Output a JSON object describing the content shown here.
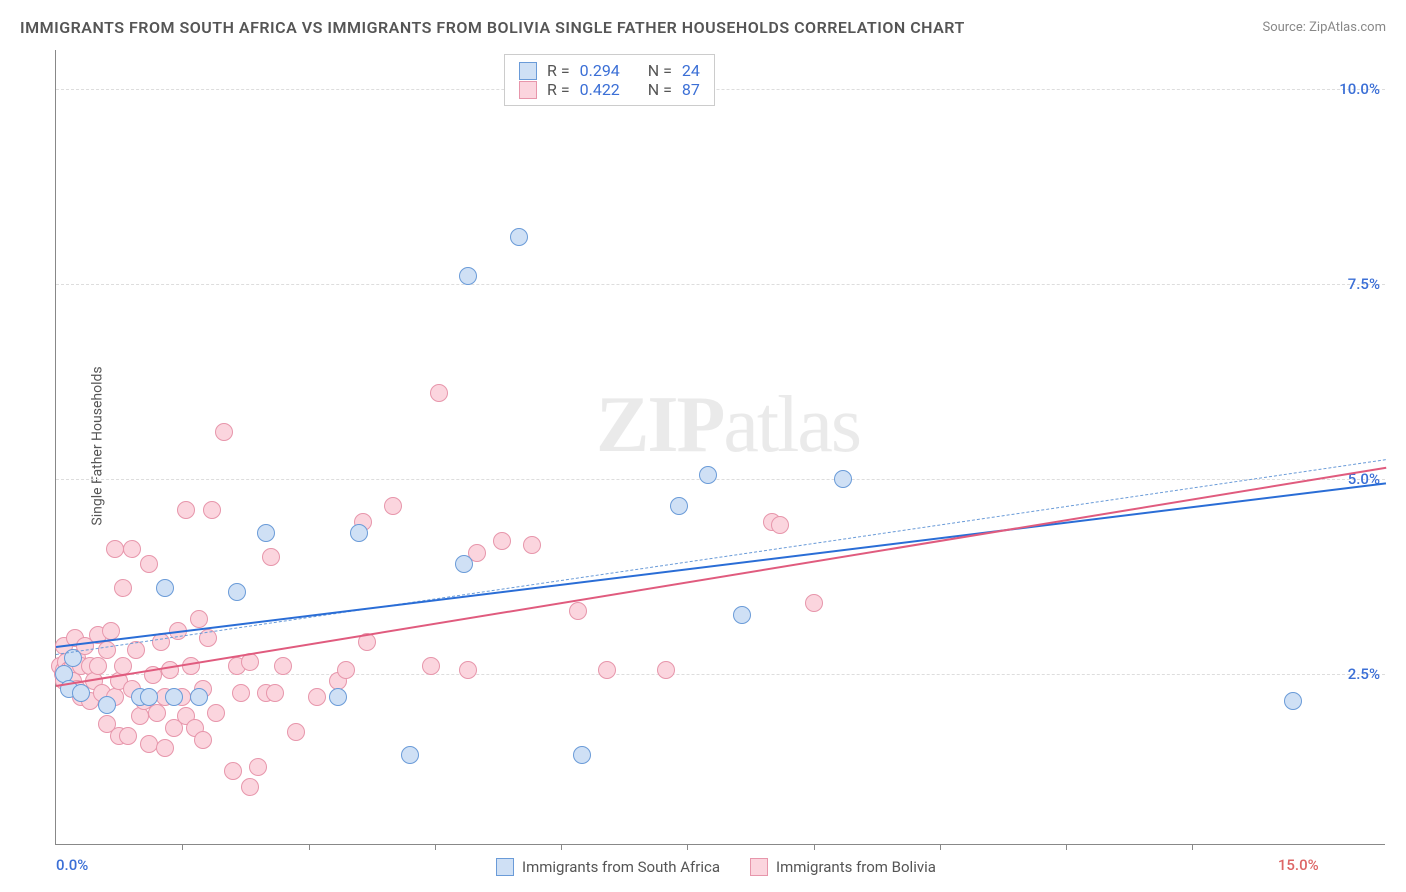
{
  "title": "IMMIGRANTS FROM SOUTH AFRICA VS IMMIGRANTS FROM BOLIVIA SINGLE FATHER HOUSEHOLDS CORRELATION CHART",
  "source": "Source: ZipAtlas.com",
  "ylabel": "Single Father Households",
  "watermark": {
    "bold": "ZIP",
    "rest": "atlas"
  },
  "chart": {
    "type": "scatter",
    "xlim": [
      0,
      15.8
    ],
    "ylim": [
      0.3,
      10.5
    ],
    "background_color": "#ffffff",
    "grid_color": "#dddddd",
    "marker_size": 18,
    "y_ticks": [
      {
        "v": 2.5,
        "label": "2.5%"
      },
      {
        "v": 5.0,
        "label": "5.0%"
      },
      {
        "v": 7.5,
        "label": "7.5%"
      },
      {
        "v": 10.0,
        "label": "10.0%"
      }
    ],
    "y_tick_color": "#3b6fd6",
    "x_ticks_minor": [
      1.5,
      3.0,
      4.5,
      6.0,
      7.5,
      9.0,
      10.5,
      12.0,
      13.5
    ],
    "x_ticks": [
      {
        "v": 0,
        "label": "0.0%",
        "color": "#3b6fd6",
        "align": "left"
      },
      {
        "v": 15.0,
        "label": "15.0%",
        "color": "#d66",
        "align": "right"
      }
    ]
  },
  "series": [
    {
      "name": "Immigrants from South Africa",
      "fill": "#cfe0f5",
      "stroke": "#6a9bd8",
      "line_color": "#2a6dd6",
      "trend": {
        "x1": 0,
        "y1": 2.85,
        "x2": 15.8,
        "y2": 4.95
      },
      "dash_trend": {
        "x1": 0,
        "y1": 2.75,
        "x2": 15.8,
        "y2": 5.25
      },
      "R": "0.294",
      "N": "24",
      "points": [
        [
          0.1,
          2.5
        ],
        [
          0.15,
          2.3
        ],
        [
          0.2,
          2.7
        ],
        [
          0.3,
          2.25
        ],
        [
          0.6,
          2.1
        ],
        [
          1.0,
          2.2
        ],
        [
          1.1,
          2.2
        ],
        [
          1.3,
          3.6
        ],
        [
          1.4,
          2.2
        ],
        [
          1.7,
          2.2
        ],
        [
          2.15,
          3.55
        ],
        [
          2.5,
          4.3
        ],
        [
          3.35,
          2.2
        ],
        [
          3.6,
          4.3
        ],
        [
          4.2,
          1.45
        ],
        [
          4.85,
          3.9
        ],
        [
          4.9,
          7.6
        ],
        [
          5.5,
          8.1
        ],
        [
          6.25,
          1.45
        ],
        [
          7.4,
          4.65
        ],
        [
          7.75,
          5.05
        ],
        [
          8.15,
          3.25
        ],
        [
          9.35,
          5.0
        ],
        [
          14.7,
          2.15
        ]
      ]
    },
    {
      "name": "Immigrants from Bolivia",
      "fill": "#fbd5de",
      "stroke": "#e796ab",
      "line_color": "#e05b7e",
      "trend": {
        "x1": 0,
        "y1": 2.35,
        "x2": 15.8,
        "y2": 5.15
      },
      "R": "0.422",
      "N": "87",
      "points": [
        [
          0.05,
          2.6
        ],
        [
          0.08,
          2.5
        ],
        [
          0.1,
          2.55
        ],
        [
          0.1,
          2.85
        ],
        [
          0.1,
          2.4
        ],
        [
          0.12,
          2.65
        ],
        [
          0.15,
          2.55
        ],
        [
          0.2,
          2.6
        ],
        [
          0.2,
          2.4
        ],
        [
          0.22,
          2.95
        ],
        [
          0.25,
          2.7
        ],
        [
          0.25,
          2.3
        ],
        [
          0.3,
          2.6
        ],
        [
          0.3,
          2.2
        ],
        [
          0.35,
          2.85
        ],
        [
          0.4,
          2.6
        ],
        [
          0.4,
          2.15
        ],
        [
          0.45,
          2.4
        ],
        [
          0.5,
          3.0
        ],
        [
          0.5,
          2.6
        ],
        [
          0.55,
          2.25
        ],
        [
          0.6,
          2.8
        ],
        [
          0.6,
          1.85
        ],
        [
          0.65,
          3.05
        ],
        [
          0.7,
          4.1
        ],
        [
          0.7,
          2.2
        ],
        [
          0.75,
          1.7
        ],
        [
          0.75,
          2.4
        ],
        [
          0.8,
          2.6
        ],
        [
          0.8,
          3.6
        ],
        [
          0.85,
          1.7
        ],
        [
          0.9,
          4.1
        ],
        [
          0.9,
          2.3
        ],
        [
          0.95,
          2.8
        ],
        [
          1.0,
          1.95
        ],
        [
          1.05,
          2.15
        ],
        [
          1.1,
          3.9
        ],
        [
          1.1,
          1.6
        ],
        [
          1.15,
          2.48
        ],
        [
          1.2,
          2.0
        ],
        [
          1.25,
          2.9
        ],
        [
          1.3,
          1.55
        ],
        [
          1.3,
          2.2
        ],
        [
          1.35,
          2.55
        ],
        [
          1.4,
          1.8
        ],
        [
          1.45,
          3.05
        ],
        [
          1.5,
          2.2
        ],
        [
          1.55,
          4.6
        ],
        [
          1.55,
          1.95
        ],
        [
          1.6,
          2.6
        ],
        [
          1.65,
          1.8
        ],
        [
          1.7,
          3.2
        ],
        [
          1.75,
          2.3
        ],
        [
          1.75,
          1.65
        ],
        [
          1.8,
          2.95
        ],
        [
          1.85,
          4.6
        ],
        [
          1.9,
          2.0
        ],
        [
          2.0,
          5.6
        ],
        [
          2.1,
          1.25
        ],
        [
          2.15,
          2.6
        ],
        [
          2.2,
          2.25
        ],
        [
          2.3,
          1.05
        ],
        [
          2.3,
          2.65
        ],
        [
          2.4,
          1.3
        ],
        [
          2.5,
          2.25
        ],
        [
          2.55,
          4.0
        ],
        [
          2.6,
          2.25
        ],
        [
          2.7,
          2.6
        ],
        [
          2.85,
          1.75
        ],
        [
          3.1,
          2.2
        ],
        [
          3.35,
          2.4
        ],
        [
          3.45,
          2.55
        ],
        [
          3.65,
          4.45
        ],
        [
          3.7,
          2.9
        ],
        [
          4.0,
          4.65
        ],
        [
          4.45,
          2.6
        ],
        [
          4.55,
          6.1
        ],
        [
          4.9,
          2.55
        ],
        [
          5.0,
          4.05
        ],
        [
          5.3,
          4.2
        ],
        [
          5.65,
          4.15
        ],
        [
          6.2,
          3.3
        ],
        [
          6.55,
          2.55
        ],
        [
          7.25,
          2.55
        ],
        [
          8.5,
          4.45
        ],
        [
          8.6,
          4.4
        ],
        [
          9.0,
          3.4
        ]
      ]
    }
  ],
  "bottom_legend": [
    {
      "swatch_fill": "#cfe0f5",
      "swatch_stroke": "#6a9bd8",
      "label": "Immigrants from South Africa"
    },
    {
      "swatch_fill": "#fbd5de",
      "swatch_stroke": "#e796ab",
      "label": "Immigrants from Bolivia"
    }
  ]
}
